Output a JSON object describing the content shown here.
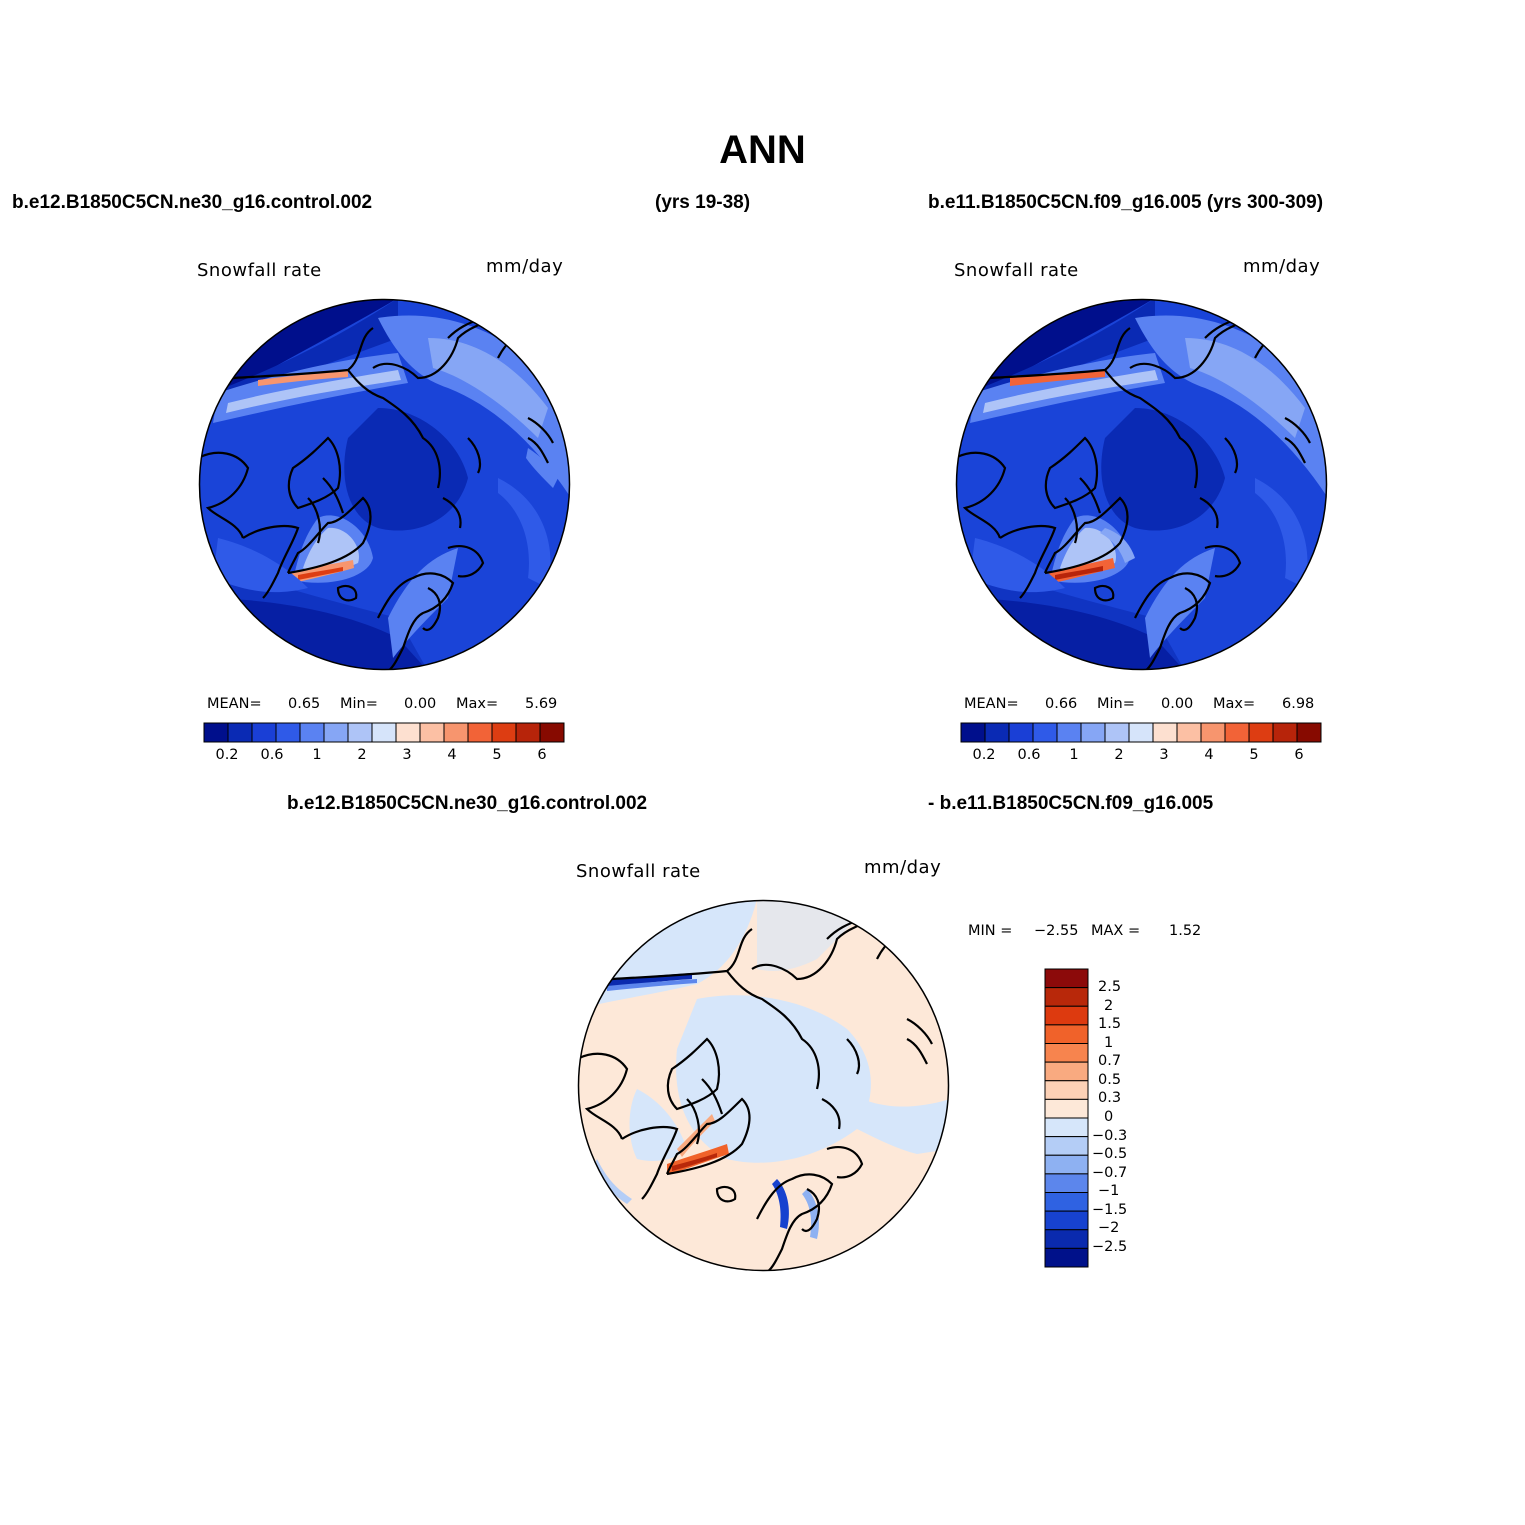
{
  "title": "ANN",
  "case_a": "b.e12.B1850C5CN.ne30_g16.control.002",
  "case_a_years": "(yrs 19-38)",
  "case_b": "b.e11.B1850C5CN.f09_g16.005 (yrs 300-309)",
  "diff_case_a": "b.e12.B1850C5CN.ne30_g16.control.002",
  "diff_case_b": "- b.e11.B1850C5CN.f09_g16.005",
  "panels": [
    {
      "variable": "Snowfall rate",
      "units": "mm/day",
      "mean_label": "MEAN=",
      "mean": "0.65",
      "min_label": "Min=",
      "min": "0.00",
      "max_label": "Max=",
      "max": "5.69"
    },
    {
      "variable": "Snowfall rate",
      "units": "mm/day",
      "mean_label": "MEAN=",
      "mean": "0.66",
      "min_label": "Min=",
      "min": "0.00",
      "max_label": "Max=",
      "max": "6.98"
    }
  ],
  "diff_panel": {
    "variable": "Snowfall rate",
    "units": "mm/day",
    "min_label": "MIN =",
    "min": "−2.55",
    "max_label": "MAX =",
    "max": "1.52"
  },
  "colorbar": {
    "colors": [
      "#000f8c",
      "#0a2ab4",
      "#1a3fd6",
      "#2f5ae8",
      "#5a82f2",
      "#86a6f5",
      "#aec4f7",
      "#d6e4fa",
      "#fde0d0",
      "#fcc0a4",
      "#f7956e",
      "#f26337",
      "#dd3d12",
      "#b7240a",
      "#870a00"
    ],
    "ticks": [
      "0.2",
      "0.6",
      "1",
      "2",
      "3",
      "4",
      "5",
      "6"
    ]
  },
  "diff_colorbar": {
    "colors_top_to_bottom": [
      "#8c0a0a",
      "#b8280a",
      "#dd3a0f",
      "#f0622a",
      "#f7844e",
      "#f9aa80",
      "#fcd1b6",
      "#fde8d8",
      "#d6e6fa",
      "#b4cdf6",
      "#8eb1f2",
      "#5c86ec",
      "#2f62e2",
      "#1742cf",
      "#0a2aae",
      "#00118a"
    ],
    "ticks": [
      "2.5",
      "2",
      "1.5",
      "1",
      "0.7",
      "0.5",
      "0.3",
      "0",
      "−0.3",
      "−0.5",
      "−0.7",
      "−1",
      "−1.5",
      "−2",
      "−2.5"
    ]
  }
}
